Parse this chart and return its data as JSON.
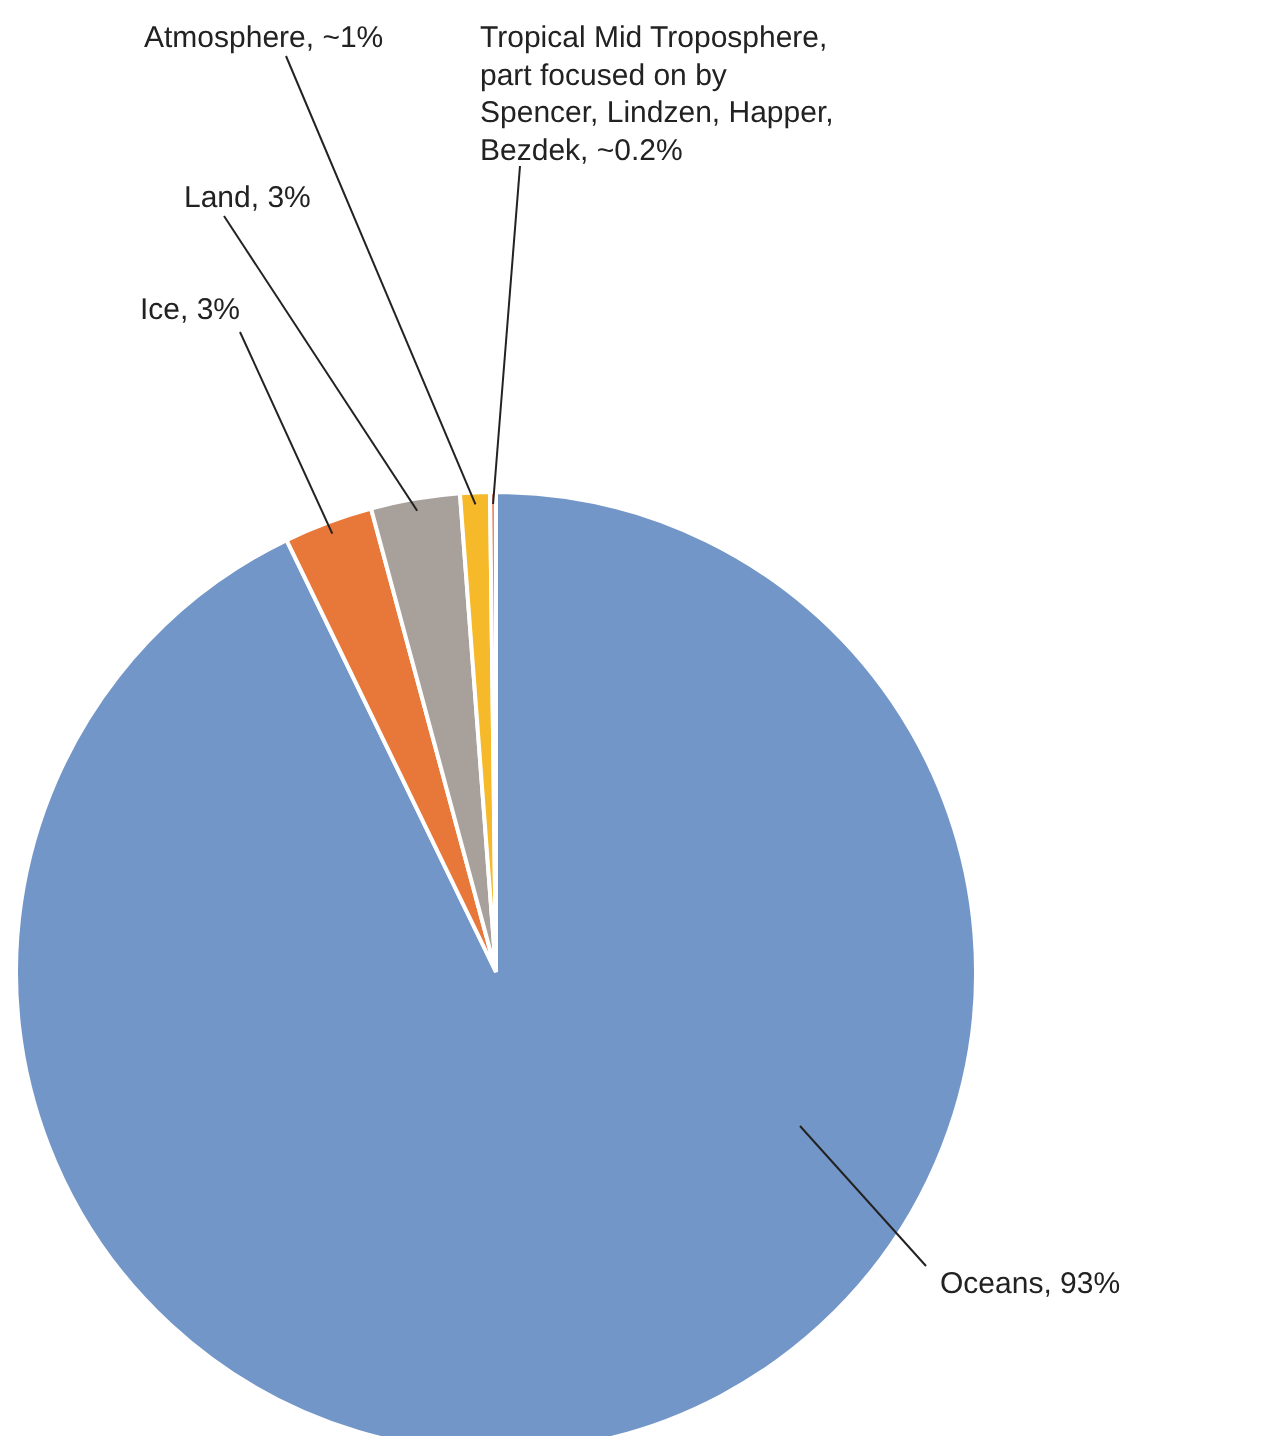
{
  "chart_data": {
    "type": "pie",
    "categories": [
      "Oceans, 93%",
      "Ice, 3%",
      "Land, 3%",
      "Atmosphere, ~1%",
      "Tropical Mid Troposphere, part focused on by Spencer, Lindzen, Happer, Bezdek, ~0.2%"
    ],
    "values": [
      93,
      3,
      3,
      1,
      0.2
    ],
    "colors": [
      "#7396c8",
      "#e8783a",
      "#a8a09a",
      "#f5b92a",
      "#ee8a6a"
    ]
  }
}
